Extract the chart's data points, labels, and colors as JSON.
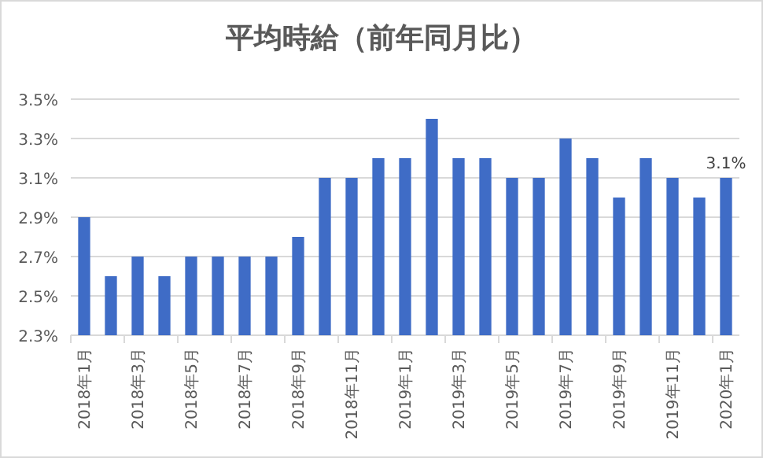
{
  "chart_data": {
    "type": "bar",
    "title": "平均時給（前年同月比）",
    "categories": [
      "2018年1月",
      null,
      "2018年3月",
      null,
      "2018年5月",
      null,
      "2018年7月",
      null,
      "2018年9月",
      null,
      "2018年11月",
      null,
      "2019年1月",
      null,
      "2019年3月",
      null,
      "2019年5月",
      null,
      "2019年7月",
      null,
      "2019年9月",
      null,
      "2019年11月",
      null,
      "2020年1月"
    ],
    "values": [
      2.9,
      2.6,
      2.7,
      2.6,
      2.7,
      2.7,
      2.7,
      2.7,
      2.8,
      3.1,
      3.1,
      3.2,
      3.2,
      3.4,
      3.2,
      3.2,
      3.1,
      3.1,
      3.3,
      3.2,
      3.0,
      3.2,
      3.1,
      3.0,
      3.1
    ],
    "value_labels": [
      null,
      null,
      null,
      null,
      null,
      null,
      null,
      null,
      null,
      null,
      null,
      null,
      null,
      null,
      null,
      null,
      null,
      null,
      null,
      null,
      null,
      null,
      null,
      null,
      "3.1%"
    ],
    "color": "#3f6cc6",
    "ylim": [
      2.3,
      3.5
    ],
    "yticks": [
      {
        "value": 2.3,
        "label": "2.3%"
      },
      {
        "value": 2.5,
        "label": "2.5%"
      },
      {
        "value": 2.7,
        "label": "2.7%"
      },
      {
        "value": 2.9,
        "label": "2.9%"
      },
      {
        "value": 3.1,
        "label": "3.1%"
      },
      {
        "value": 3.3,
        "label": "3.3%"
      },
      {
        "value": 3.5,
        "label": "3.5%"
      }
    ],
    "grid": "y"
  }
}
